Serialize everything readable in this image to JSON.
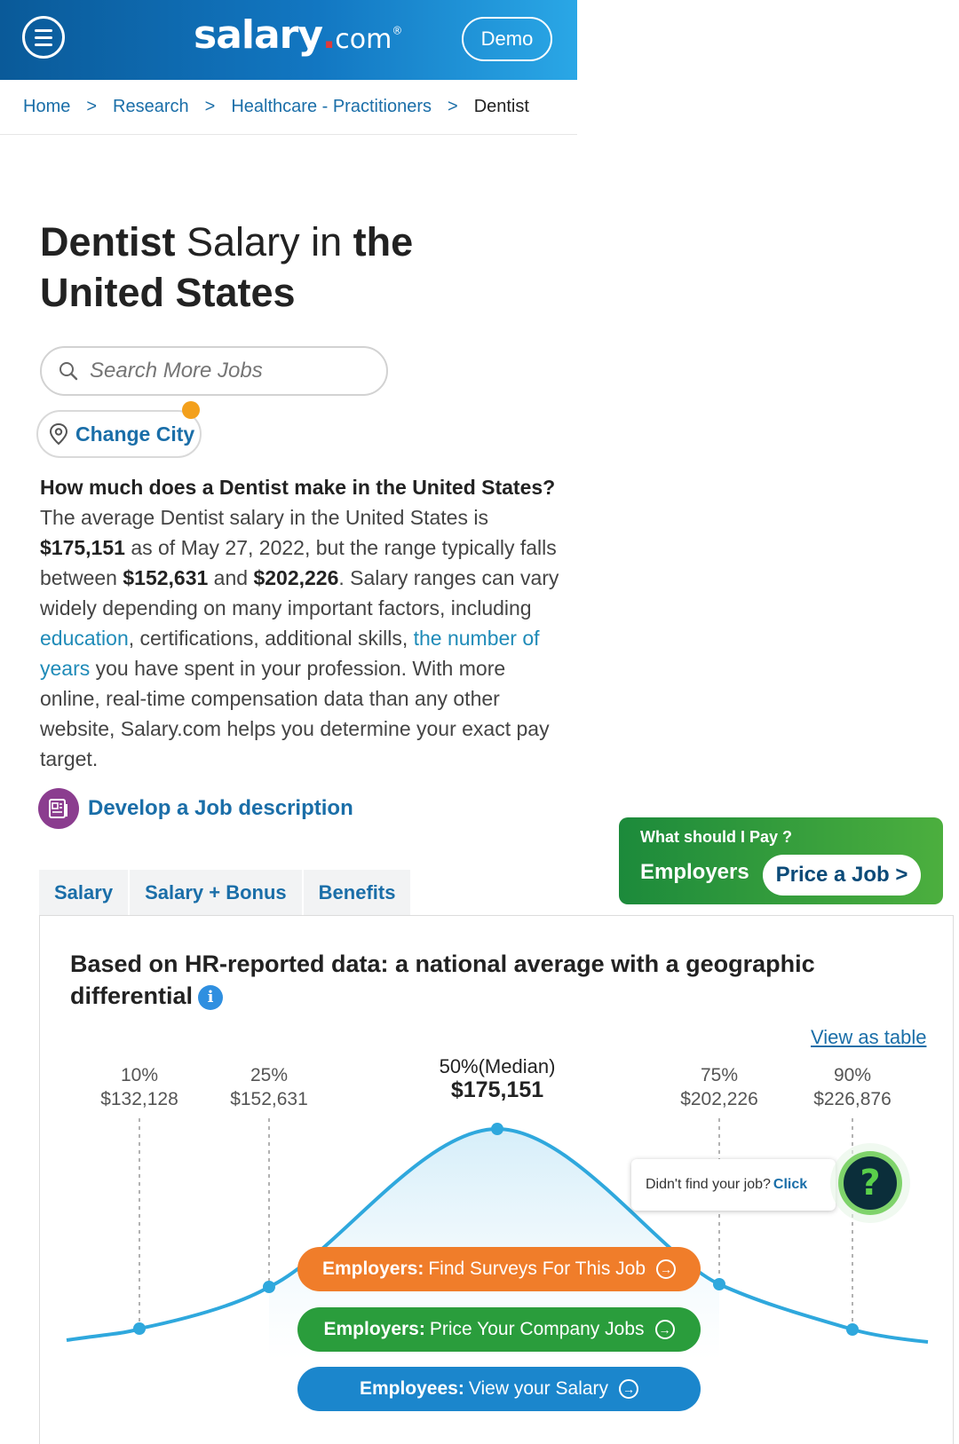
{
  "header": {
    "logo_main": "salary",
    "logo_com": "com",
    "demo_label": "Demo"
  },
  "breadcrumb": {
    "items": [
      "Home",
      "Research",
      "Healthcare - Practitioners"
    ],
    "separator": ">",
    "current": "Dentist"
  },
  "title": {
    "job": "Dentist",
    "salary_word": " Salary in ",
    "location": "the United States"
  },
  "search": {
    "placeholder": "Search More Jobs"
  },
  "change_city": {
    "label": "Change City"
  },
  "intro": {
    "question": "How much does a Dentist make in the United States?",
    "text1": " The average Dentist salary in the United States is ",
    "avg": "$175,151",
    "text2": " as of May 27, 2022, but the range typically falls between ",
    "low": "$152,631",
    "and": " and ",
    "high": "$202,226",
    "text3": ". Salary ranges can vary widely depending on many important factors, including ",
    "link1": "education",
    "text4": ", certifications, additional skills, ",
    "link2": "the number of years",
    "text5": " you have spent in your profession. With more online, real-time compensation data than any other website, Salary.com helps you determine your exact pay target."
  },
  "job_description_link": "Develop a Job description",
  "tabs": [
    "Salary",
    "Salary + Bonus",
    "Benefits"
  ],
  "promo": {
    "question": "What should I Pay ?",
    "employers": "Employers",
    "button": "Price a Job >"
  },
  "card": {
    "title": "Based on HR-reported data: a national average with a geographic differential",
    "view_table": "View as table",
    "percentiles": [
      {
        "label": "10%",
        "value": "$132,128"
      },
      {
        "label": "25%",
        "value": "$152,631"
      },
      {
        "label": "50%(Median)",
        "value": "$175,151"
      },
      {
        "label": "75%",
        "value": "$202,226"
      },
      {
        "label": "90%",
        "value": "$226,876"
      }
    ],
    "help_text": "Didn't find your job?",
    "help_click": "Click",
    "help_icon": "?",
    "cta": [
      {
        "bold": "Employers:",
        "text": "Find Surveys For This Job"
      },
      {
        "bold": "Employers:",
        "text": "Price Your Company Jobs"
      },
      {
        "bold": "Employees:",
        "text": "View your Salary"
      }
    ]
  },
  "colors": {
    "brand_blue": "#0a5a99",
    "link_blue": "#1a6ea8",
    "curve": "#2fa8dd",
    "orange": "#f07d2a",
    "green": "#2a9d3c",
    "blue_cta": "#1b86cc",
    "promo_green": "#1c8a3b"
  },
  "icons": [
    "menu-icon",
    "search-icon",
    "location-pin-icon",
    "document-icon",
    "info-icon",
    "help-question-icon",
    "arrow-right-circle-icon"
  ]
}
